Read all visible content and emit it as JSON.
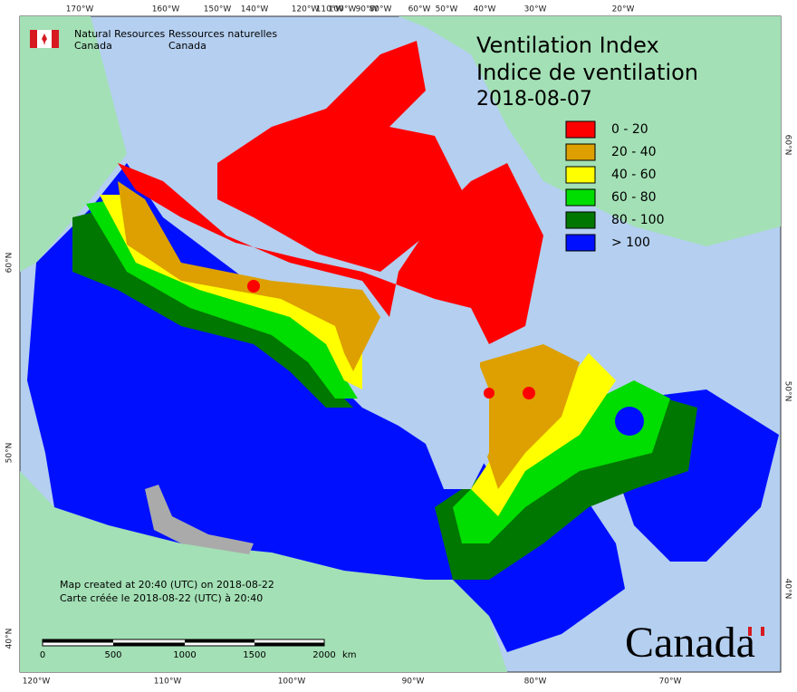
{
  "title": {
    "en": "Ventilation Index",
    "fr": "Indice de ventilation",
    "date": "2018-08-07"
  },
  "agency": {
    "en": [
      "Natural Resources",
      "Canada"
    ],
    "fr": [
      "Ressources naturelles",
      "Canada"
    ]
  },
  "legend": [
    {
      "label": "0 - 20",
      "color": "#ff0000"
    },
    {
      "label": "20 - 40",
      "color": "#dda000"
    },
    {
      "label": "40 - 60",
      "color": "#ffff00"
    },
    {
      "label": "60 - 80",
      "color": "#00dd00"
    },
    {
      "label": "80 - 100",
      "color": "#007700"
    },
    {
      "label": "> 100",
      "color": "#0010ff"
    }
  ],
  "top_labels": [
    "170°W",
    "160°W",
    "150°W",
    "140°W",
    "120°W",
    "110°W",
    "100°W",
    "90°W",
    "80°W",
    "60°W",
    "50°W",
    "40°W",
    "30°W",
    "20°W"
  ],
  "bottom_labels": [
    "120°W",
    "110°W",
    "100°W",
    "90°W",
    "80°W",
    "70°W"
  ],
  "left_labels": [
    "60°N",
    "50°N",
    "40°N"
  ],
  "right_labels": [
    "60°N",
    "50°N",
    "40°N"
  ],
  "scale_bar": {
    "ticks": [
      "0",
      "500",
      "1000",
      "1500",
      "2000"
    ],
    "unit": "km"
  },
  "credits": [
    "Map created at 20:40 (UTC) on 2018-08-22",
    "Carte créée le 2018-08-22 (UTC) à 20:40"
  ],
  "wordmark": "Canada"
}
